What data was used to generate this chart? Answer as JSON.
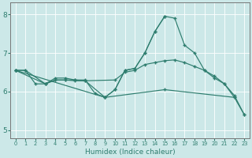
{
  "xlabel": "Humidex (Indice chaleur)",
  "bg_color": "#cce8e8",
  "grid_color": "#ffffff",
  "line_color": "#2e7d6e",
  "xlim": [
    -0.5,
    23.5
  ],
  "ylim": [
    4.8,
    8.3
  ],
  "yticks": [
    5,
    6,
    7,
    8
  ],
  "xticks": [
    0,
    1,
    2,
    3,
    4,
    5,
    6,
    7,
    8,
    9,
    10,
    11,
    12,
    13,
    14,
    15,
    16,
    17,
    18,
    19,
    20,
    21,
    22,
    23
  ],
  "series": [
    {
      "x": [
        0,
        1,
        2,
        3,
        4,
        5,
        6,
        7,
        8,
        9,
        10,
        11,
        12,
        13,
        14,
        15,
        16,
        17,
        18,
        19,
        20,
        21,
        22,
        23
      ],
      "y": [
        6.55,
        6.55,
        6.2,
        6.2,
        6.35,
        6.35,
        6.3,
        6.3,
        5.95,
        5.85,
        6.05,
        6.55,
        6.6,
        7.0,
        7.55,
        7.95,
        7.9,
        7.2,
        7.0,
        6.55,
        6.4,
        6.2,
        5.9,
        5.4
      ]
    },
    {
      "x": [
        0,
        9,
        15,
        22,
        23
      ],
      "y": [
        6.55,
        5.85,
        6.05,
        5.85,
        5.4
      ]
    },
    {
      "x": [
        0,
        3,
        4,
        5,
        6,
        7,
        10,
        11,
        12,
        13,
        14,
        15,
        16,
        17,
        18,
        19,
        20,
        21,
        22
      ],
      "y": [
        6.55,
        6.2,
        6.3,
        6.3,
        6.3,
        6.28,
        6.3,
        6.5,
        6.55,
        6.7,
        6.75,
        6.8,
        6.82,
        6.75,
        6.65,
        6.55,
        6.35,
        6.2,
        5.85
      ]
    },
    {
      "x": [
        0,
        1,
        3,
        4,
        5,
        6,
        7,
        9,
        10,
        11,
        12,
        13,
        14,
        15
      ],
      "y": [
        6.55,
        6.55,
        6.2,
        6.3,
        6.3,
        6.28,
        6.28,
        5.85,
        6.05,
        6.55,
        6.6,
        7.0,
        7.55,
        7.95
      ]
    }
  ]
}
